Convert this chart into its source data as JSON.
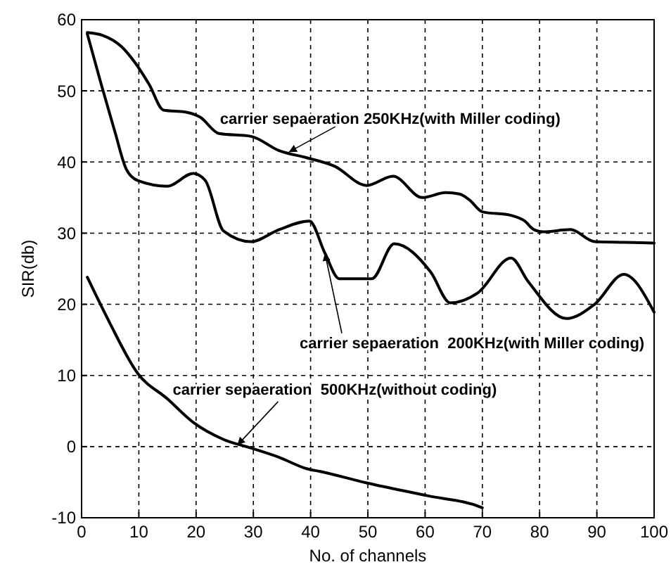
{
  "chart_data": {
    "type": "line",
    "xlabel": "No. of channels",
    "ylabel": "SIR(db)",
    "xlim": [
      0,
      100
    ],
    "ylim": [
      -10,
      60
    ],
    "xticks": [
      0,
      10,
      20,
      30,
      40,
      50,
      60,
      70,
      80,
      90,
      100
    ],
    "yticks": [
      -10,
      0,
      10,
      20,
      30,
      40,
      50,
      60
    ],
    "grid": true,
    "marker": "none",
    "line_style": "solid",
    "series": [
      {
        "color": "#000000",
        "x": [
          1,
          3.7,
          7,
          9.4,
          11.8,
          14.3,
          18.3,
          20.7,
          24,
          29.6,
          34.5,
          39.3,
          44.2,
          49.8,
          54.4,
          59.5,
          63.6,
          66,
          67.7,
          70,
          75,
          77.4,
          79,
          80.6,
          85.4,
          89.6,
          95,
          100
        ],
        "values": [
          58.2,
          57.8,
          56.2,
          53.9,
          50.9,
          47.3,
          47,
          46.3,
          44,
          43.6,
          41.6,
          40.6,
          39.4,
          36.7,
          38,
          35,
          35.7,
          35.5,
          34.7,
          33,
          32.5,
          31.7,
          30.5,
          30.2,
          30.5,
          28.8,
          28.7,
          28.6
        ]
      },
      {
        "color": "#000000",
        "x": [
          1,
          3.4,
          5.8,
          7.8,
          9.8,
          15,
          19.5,
          21.6,
          24.8,
          29.6,
          34.5,
          39.8,
          42.5,
          45,
          50.7,
          54.6,
          61,
          64.4,
          69.2,
          75,
          78,
          84.7,
          89.6,
          94.7,
          100
        ],
        "values": [
          58,
          51,
          44.3,
          39,
          37.4,
          36.6,
          38.4,
          37.4,
          30.3,
          28.8,
          30.5,
          31.7,
          27.2,
          23.6,
          23.6,
          28.5,
          24.5,
          20.2,
          21.6,
          26.5,
          23.2,
          18,
          20,
          24.2,
          18.9
        ]
      },
      {
        "color": "#000000",
        "x": [
          1,
          4.6,
          9.8,
          15,
          19.5,
          24.8,
          29.6,
          34.5,
          39.3,
          41.7,
          49.8,
          60.4,
          69.7,
          70
        ],
        "values": [
          23.8,
          17.9,
          10.3,
          6.7,
          3.4,
          1,
          -0.2,
          -1.5,
          -3.1,
          -3.5,
          -5.1,
          -6.9,
          -8.5,
          -8.6
        ]
      }
    ],
    "annotations": [
      {
        "text": "carrier sepaeration 250KHz(with Miller coding)",
        "x": 36.2,
        "y": 41.4
      },
      {
        "text": "carrier sepaeration  200KHz(with Miller coding)",
        "x": 42.5,
        "y": 27.2
      },
      {
        "text": "carrier sepaeration  500KHz(without coding)",
        "x": 27.2,
        "y": 0.2
      }
    ]
  }
}
